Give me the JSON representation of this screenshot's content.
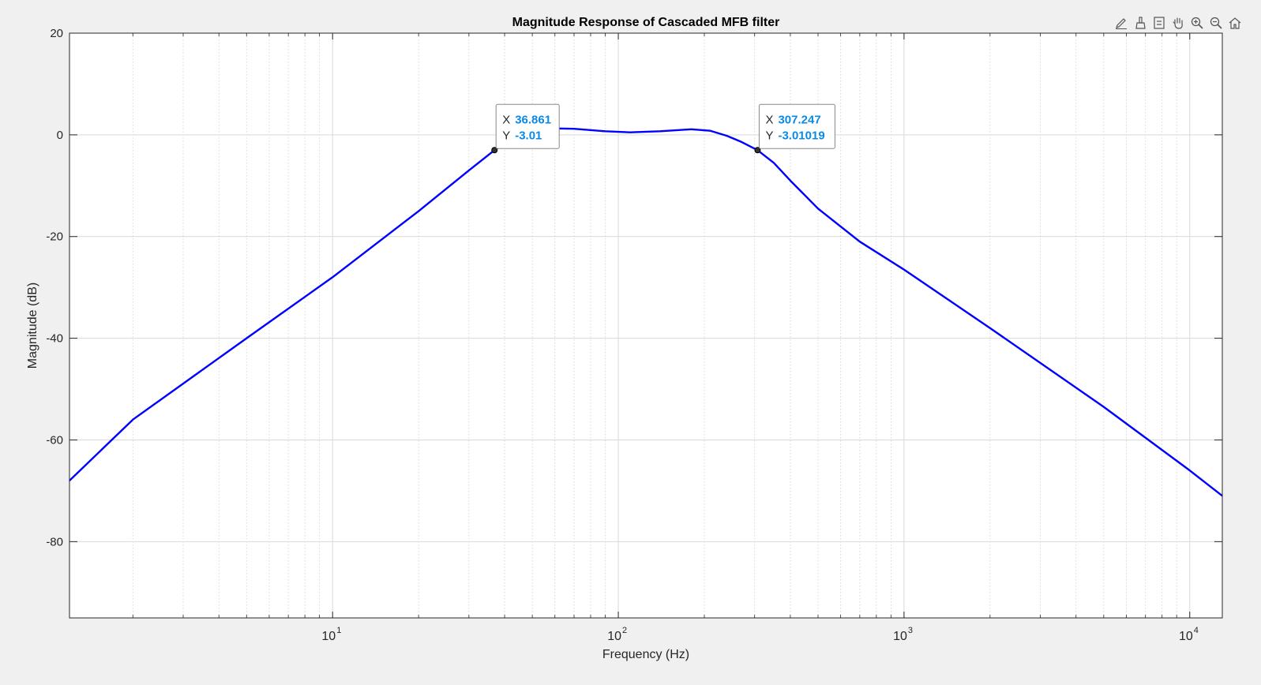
{
  "toolbar": {
    "items": [
      {
        "name": "edit-plot-icon"
      },
      {
        "name": "brush-icon"
      },
      {
        "name": "data-tips-icon"
      },
      {
        "name": "pan-icon"
      },
      {
        "name": "zoom-in-icon"
      },
      {
        "name": "zoom-out-icon"
      },
      {
        "name": "home-icon"
      }
    ]
  },
  "colors": {
    "line": "#0000ff",
    "datatip_value": "#0a8ae6",
    "grid": "#d9d9d9",
    "background": "#f0f0f0",
    "axes_bg": "#ffffff"
  },
  "chart_data": {
    "type": "line",
    "title": "Magnitude Response of Cascaded MFB filter",
    "xlabel": "Frequency (Hz)",
    "ylabel": "Magnitude (dB)",
    "xscale": "log",
    "xlim": [
      1.2,
      13000
    ],
    "ylim": [
      -95,
      20
    ],
    "xticks": [
      10,
      100,
      1000,
      10000
    ],
    "xtick_labels": [
      {
        "base": "10",
        "exp": "1"
      },
      {
        "base": "10",
        "exp": "2"
      },
      {
        "base": "10",
        "exp": "3"
      },
      {
        "base": "10",
        "exp": "4"
      }
    ],
    "yticks": [
      20,
      0,
      -20,
      -40,
      -60,
      -80
    ],
    "ytick_labels": [
      "20",
      "0",
      "-20",
      "-40",
      "-60",
      "-80"
    ],
    "grid": true,
    "series": [
      {
        "x": [
          1.2,
          2,
          5,
          10,
          20,
          30,
          36.861,
          45,
          55,
          70,
          90,
          110,
          140,
          180,
          210,
          240,
          270,
          307.247,
          350,
          400,
          500,
          700,
          1000,
          2000,
          5000,
          10000,
          13000
        ],
        "y": [
          -68,
          -56,
          -40,
          -28,
          -15,
          -7,
          -3.01,
          0,
          1.3,
          1.2,
          0.7,
          0.5,
          0.7,
          1.1,
          0.8,
          -0.2,
          -1.4,
          -3.01019,
          -5.5,
          -9,
          -14.5,
          -21,
          -26.5,
          -38,
          -53.5,
          -66,
          -71
        ]
      }
    ],
    "datatips": [
      {
        "x": 36.861,
        "y": -3.01,
        "x_label": "X",
        "y_label": "Y",
        "x_text": "36.861",
        "y_text": "-3.01"
      },
      {
        "x": 307.247,
        "y": -3.01019,
        "x_label": "X",
        "y_label": "Y",
        "x_text": "307.247",
        "y_text": "-3.01019"
      }
    ]
  }
}
